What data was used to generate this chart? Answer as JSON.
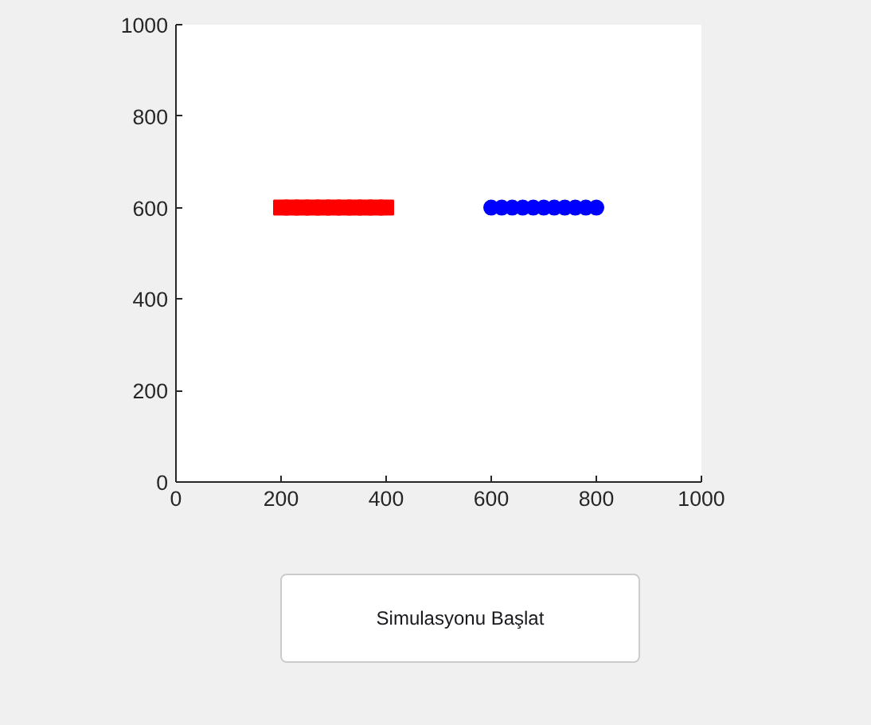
{
  "chart_data": {
    "type": "scatter",
    "x": [
      200,
      220,
      240,
      260,
      280,
      300,
      320,
      340,
      360,
      380,
      400
    ],
    "series": [
      {
        "color": "#ff0000",
        "marker": "square",
        "values": [
          600,
          600,
          600,
          600,
          600,
          600,
          600,
          600,
          600,
          600,
          600
        ]
      },
      {
        "color": "#0000ff",
        "marker": "circle",
        "x": [
          600,
          620,
          640,
          660,
          680,
          700,
          720,
          740,
          760,
          780,
          800
        ],
        "values": [
          600,
          600,
          600,
          600,
          600,
          600,
          600,
          600,
          600,
          600,
          600
        ]
      }
    ],
    "xlim": [
      0,
      1000
    ],
    "ylim": [
      0,
      1000
    ],
    "xticks": [
      0,
      200,
      400,
      600,
      800,
      1000
    ],
    "yticks": [
      0,
      200,
      400,
      600,
      800,
      1000
    ],
    "annotations": [
      "Simulasyonu Başlat"
    ]
  }
}
